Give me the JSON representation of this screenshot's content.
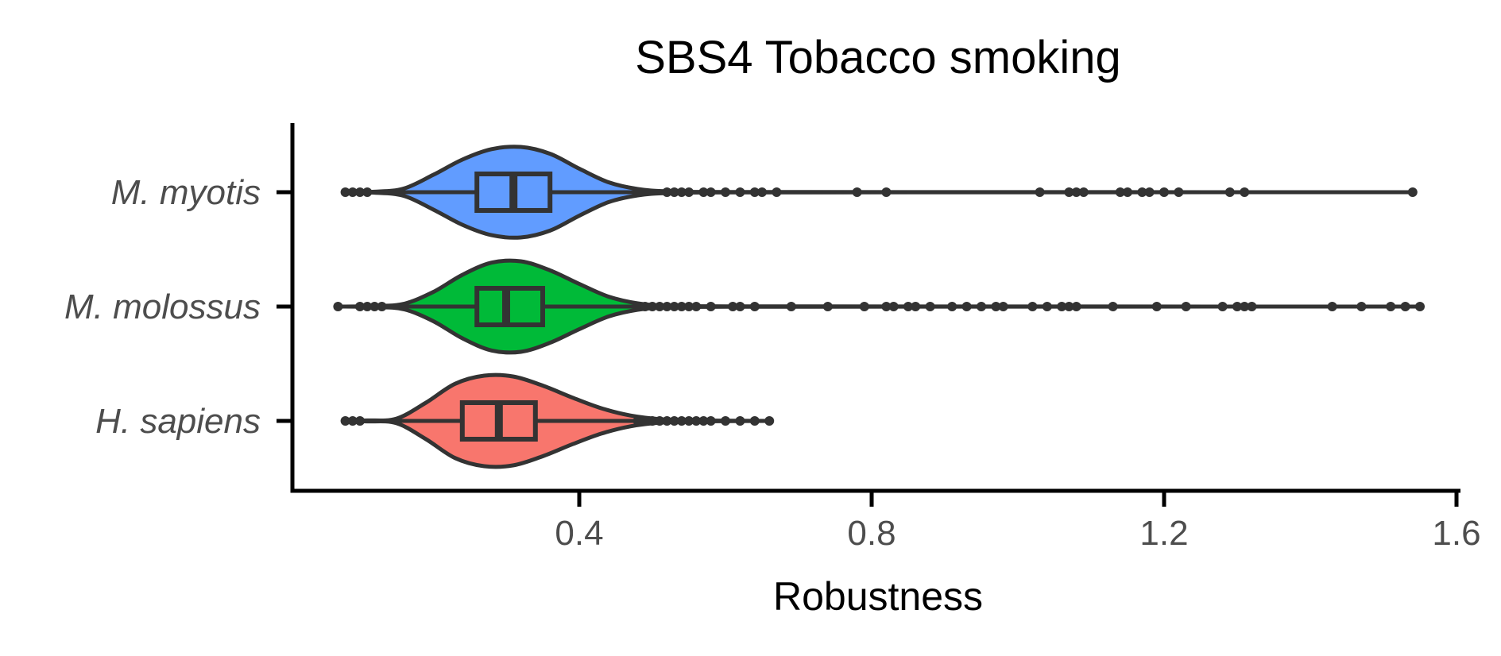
{
  "chart_data": {
    "type": "violin",
    "title": "SBS4 Tobacco smoking",
    "xlabel": "Robustness",
    "ylabel": "",
    "xlim": [
      0.0,
      1.62
    ],
    "xticks": [
      0.4,
      0.8,
      1.2,
      1.6
    ],
    "xtick_labels": [
      "0.4",
      "0.8",
      "1.2",
      "1.6"
    ],
    "grid": false,
    "legend": "none",
    "outline_color": "#333333",
    "axis_color": "#000000",
    "categories": [
      "M. myotis",
      "M. molossus",
      "H. sapiens"
    ],
    "series": [
      {
        "name": "M. myotis",
        "color": "#619cff",
        "min": 0.08,
        "q1": 0.26,
        "median": 0.31,
        "q3": 0.36,
        "max": 1.54,
        "density": [
          [
            0.08,
            0.0
          ],
          [
            0.12,
            0.01
          ],
          [
            0.16,
            0.08
          ],
          [
            0.2,
            0.38
          ],
          [
            0.24,
            0.72
          ],
          [
            0.28,
            0.95
          ],
          [
            0.32,
            1.0
          ],
          [
            0.36,
            0.85
          ],
          [
            0.4,
            0.52
          ],
          [
            0.44,
            0.22
          ],
          [
            0.48,
            0.07
          ],
          [
            0.52,
            0.02
          ],
          [
            0.6,
            0.005
          ],
          [
            1.54,
            0.0
          ]
        ],
        "outliers": [
          0.08,
          0.09,
          0.1,
          0.11,
          0.52,
          0.53,
          0.54,
          0.55,
          0.57,
          0.58,
          0.6,
          0.62,
          0.64,
          0.65,
          0.67,
          0.78,
          0.82,
          1.03,
          1.07,
          1.08,
          1.09,
          1.14,
          1.15,
          1.17,
          1.18,
          1.2,
          1.22,
          1.29,
          1.31,
          1.54
        ]
      },
      {
        "name": "M. molossus",
        "color": "#00ba38",
        "min": 0.07,
        "q1": 0.26,
        "median": 0.3,
        "q3": 0.35,
        "max": 1.55,
        "density": [
          [
            0.07,
            0.0
          ],
          [
            0.12,
            0.01
          ],
          [
            0.16,
            0.06
          ],
          [
            0.2,
            0.32
          ],
          [
            0.24,
            0.7
          ],
          [
            0.28,
            0.97
          ],
          [
            0.32,
            1.0
          ],
          [
            0.36,
            0.8
          ],
          [
            0.4,
            0.5
          ],
          [
            0.44,
            0.22
          ],
          [
            0.48,
            0.07
          ],
          [
            0.52,
            0.02
          ],
          [
            0.6,
            0.005
          ],
          [
            1.55,
            0.0
          ]
        ],
        "outliers": [
          0.07,
          0.1,
          0.11,
          0.12,
          0.13,
          0.49,
          0.5,
          0.51,
          0.52,
          0.53,
          0.54,
          0.55,
          0.56,
          0.58,
          0.61,
          0.62,
          0.64,
          0.69,
          0.74,
          0.79,
          0.82,
          0.83,
          0.85,
          0.86,
          0.88,
          0.91,
          0.93,
          0.95,
          0.97,
          0.98,
          1.02,
          1.04,
          1.06,
          1.07,
          1.08,
          1.13,
          1.19,
          1.23,
          1.28,
          1.3,
          1.31,
          1.32,
          1.43,
          1.47,
          1.51,
          1.53,
          1.55
        ]
      },
      {
        "name": "H. sapiens",
        "color": "#f8766d",
        "min": 0.08,
        "q1": 0.24,
        "median": 0.29,
        "q3": 0.34,
        "max": 0.66,
        "density": [
          [
            0.08,
            0.0
          ],
          [
            0.11,
            0.01
          ],
          [
            0.15,
            0.05
          ],
          [
            0.19,
            0.4
          ],
          [
            0.23,
            0.82
          ],
          [
            0.27,
            1.0
          ],
          [
            0.31,
            0.98
          ],
          [
            0.35,
            0.78
          ],
          [
            0.39,
            0.52
          ],
          [
            0.43,
            0.28
          ],
          [
            0.47,
            0.12
          ],
          [
            0.51,
            0.04
          ],
          [
            0.56,
            0.01
          ],
          [
            0.66,
            0.0
          ]
        ],
        "outliers": [
          0.08,
          0.09,
          0.1,
          0.48,
          0.49,
          0.5,
          0.51,
          0.52,
          0.53,
          0.54,
          0.55,
          0.56,
          0.57,
          0.58,
          0.6,
          0.62,
          0.64,
          0.66
        ]
      }
    ]
  }
}
